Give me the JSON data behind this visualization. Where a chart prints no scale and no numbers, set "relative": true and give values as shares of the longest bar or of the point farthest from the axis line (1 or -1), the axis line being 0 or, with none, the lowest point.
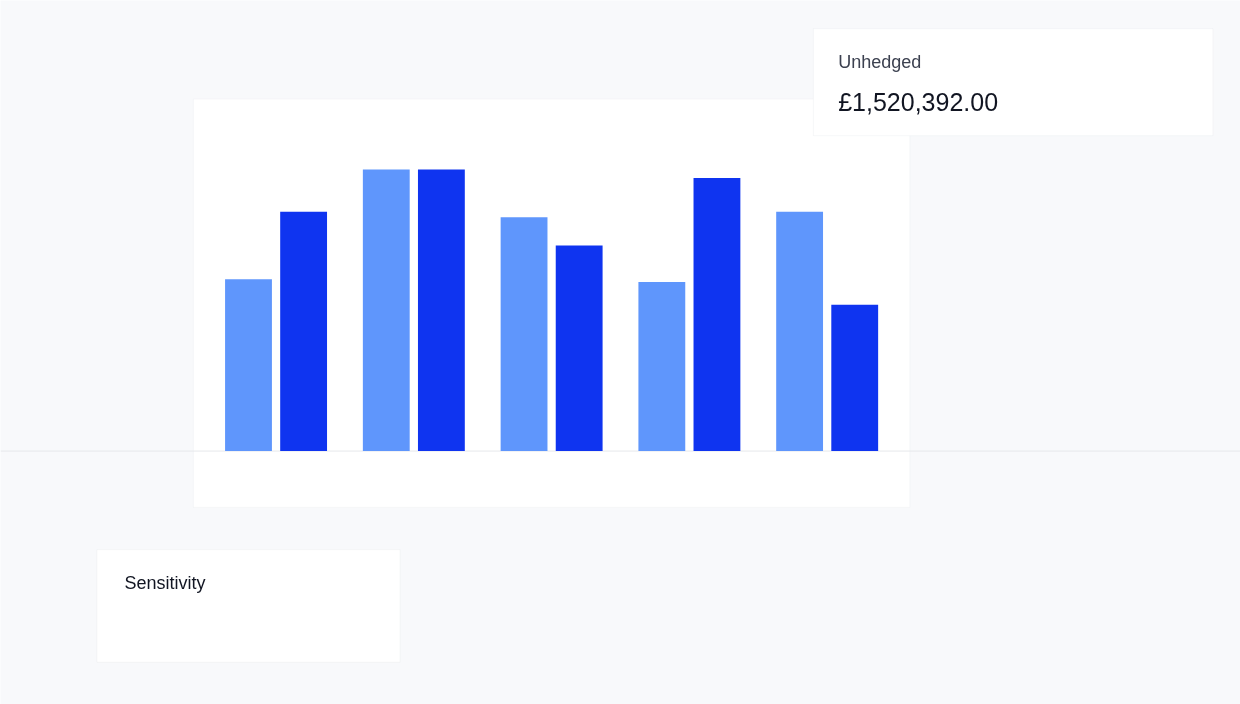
{
  "chart_data": {
    "type": "bar",
    "relative": true,
    "categories": [
      null,
      null,
      null,
      null,
      null
    ],
    "series": [
      {
        "color": "#5f96fc",
        "values": [
          0.61,
          1.0,
          0.83,
          0.6,
          0.85
        ]
      },
      {
        "color": "#0f34f0",
        "values": [
          0.85,
          1.0,
          0.73,
          0.97,
          0.52
        ]
      }
    ],
    "annotations": [
      "Unhedged",
      "£1,520,392.00",
      "Sensitivity"
    ]
  }
}
